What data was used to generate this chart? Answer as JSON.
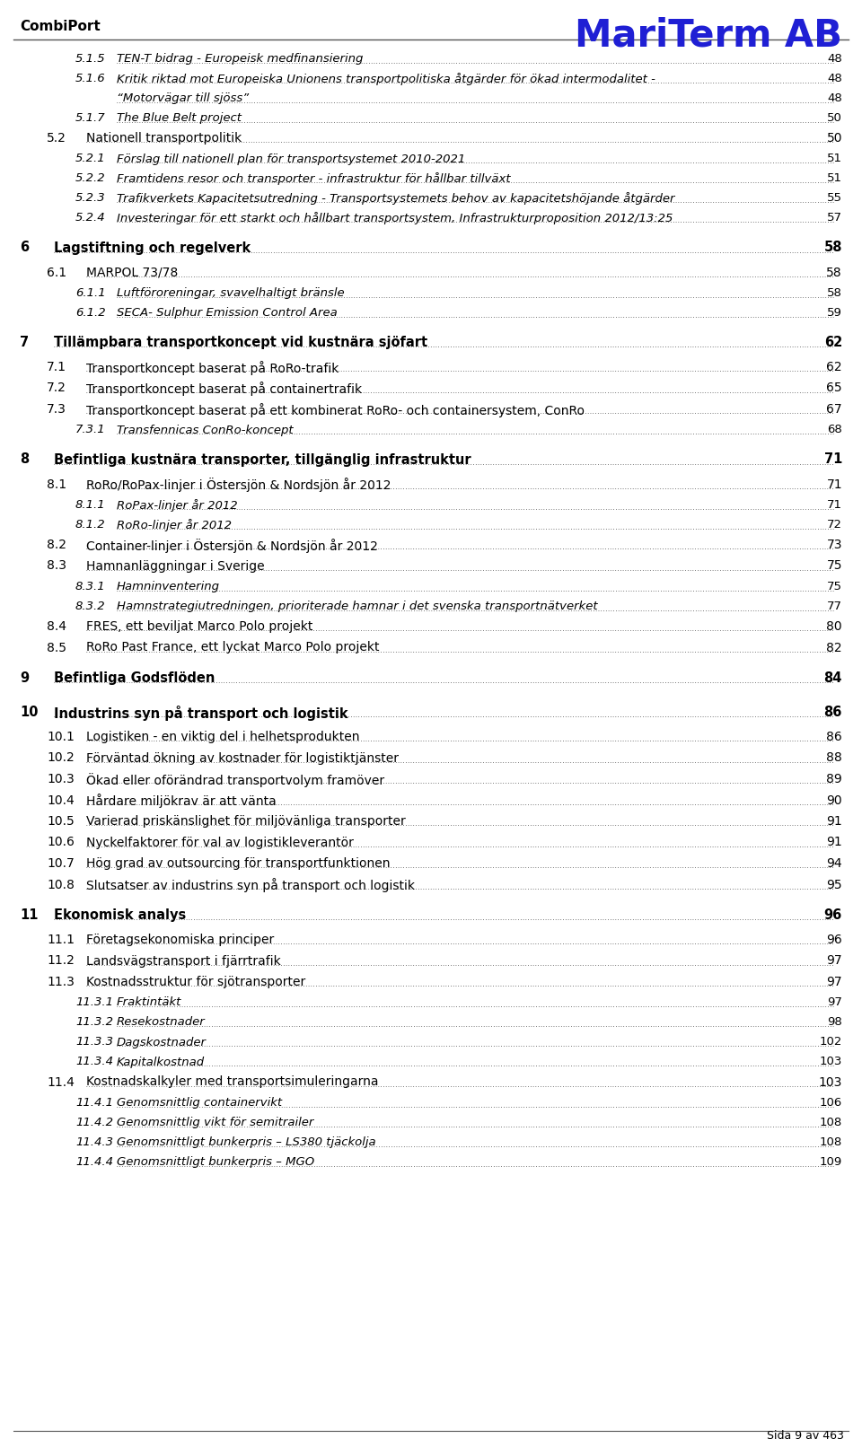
{
  "header_left": "CombiPort",
  "header_right": "MariTerm AB",
  "footer": "Sida 9 av 463",
  "background_color": "#ffffff",
  "text_color": "#000000",
  "header_right_color": "#1f1fd4",
  "entries": [
    {
      "level": 3,
      "num": "5.1.5",
      "text": "TEN-T bidrag - Europeisk medfinansiering",
      "page": "48",
      "style": "italic",
      "multiline": false
    },
    {
      "level": 3,
      "num": "5.1.6",
      "text": "Kritik riktad mot Europeiska Unionens transportpolitiska åtgärder för ökad intermodalitet -",
      "text2": "“Motorvägar till sjöss”",
      "page": "48",
      "style": "italic",
      "multiline": true
    },
    {
      "level": 3,
      "num": "5.1.7",
      "text": "The Blue Belt project",
      "page": "50",
      "style": "italic",
      "multiline": false
    },
    {
      "level": 2,
      "num": "5.2",
      "text": "Nationell transportpolitik",
      "page": "50",
      "style": "normal",
      "multiline": false
    },
    {
      "level": 3,
      "num": "5.2.1",
      "text": "Förslag till nationell plan för transportsystemet 2010-2021",
      "page": "51",
      "style": "italic",
      "multiline": false
    },
    {
      "level": 3,
      "num": "5.2.2",
      "text": "Framtidens resor och transporter - infrastruktur för hållbar tillväxt",
      "page": "51",
      "style": "italic",
      "multiline": false
    },
    {
      "level": 3,
      "num": "5.2.3",
      "text": "Trafikverkets Kapacitetsutredning - Transportsystemets behov av kapacitetshöjande åtgärder",
      "page": "55",
      "style": "italic",
      "multiline": false
    },
    {
      "level": 3,
      "num": "5.2.4",
      "text": "Investeringar för ett starkt och hållbart transportsystem, Infrastrukturproposition 2012/13:25",
      "page": "57",
      "style": "italic",
      "multiline": false
    },
    {
      "level": 1,
      "num": "6",
      "text": "Lagstiftning och regelverk",
      "page": "58",
      "style": "bold",
      "multiline": false
    },
    {
      "level": 2,
      "num": "6.1",
      "text": "MARPOL 73/78",
      "page": "58",
      "style": "normal",
      "multiline": false
    },
    {
      "level": 3,
      "num": "6.1.1",
      "text": "Luftföroreningar, svavelhaltigt bränsle",
      "page": "58",
      "style": "italic",
      "multiline": false
    },
    {
      "level": 3,
      "num": "6.1.2",
      "text": "SECA- Sulphur Emission Control Area",
      "page": "59",
      "style": "italic",
      "multiline": false
    },
    {
      "level": 1,
      "num": "7",
      "text": "Tillämpbara transportkoncept vid kustnära sjöfart",
      "page": "62",
      "style": "bold",
      "multiline": false
    },
    {
      "level": 2,
      "num": "7.1",
      "text": "Transportkoncept baserat på RoRo-trafik",
      "page": "62",
      "style": "normal",
      "multiline": false
    },
    {
      "level": 2,
      "num": "7.2",
      "text": "Transportkoncept baserat på containertrafik",
      "page": "65",
      "style": "normal",
      "multiline": false
    },
    {
      "level": 2,
      "num": "7.3",
      "text": "Transportkoncept baserat på ett kombinerat RoRo- och containersystem, ConRo",
      "page": "67",
      "style": "normal",
      "multiline": false
    },
    {
      "level": 3,
      "num": "7.3.1",
      "text": "Transfennicas ConRo-koncept",
      "page": "68",
      "style": "italic",
      "multiline": false
    },
    {
      "level": 1,
      "num": "8",
      "text": "Befintliga kustnära transporter, tillgänglig infrastruktur",
      "page": "71",
      "style": "bold",
      "multiline": false
    },
    {
      "level": 2,
      "num": "8.1",
      "text": "RoRo/RoPax-linjer i Östersjön & Nordsjön år 2012",
      "page": "71",
      "style": "normal",
      "multiline": false
    },
    {
      "level": 3,
      "num": "8.1.1",
      "text": "RoPax-linjer år 2012",
      "page": "71",
      "style": "italic",
      "multiline": false
    },
    {
      "level": 3,
      "num": "8.1.2",
      "text": "RoRo-linjer år 2012",
      "page": "72",
      "style": "italic",
      "multiline": false
    },
    {
      "level": 2,
      "num": "8.2",
      "text": "Container-linjer i Östersjön & Nordsjön år 2012",
      "page": "73",
      "style": "normal",
      "multiline": false
    },
    {
      "level": 2,
      "num": "8.3",
      "text": "Hamnanläggningar i Sverige",
      "page": "75",
      "style": "normal",
      "multiline": false
    },
    {
      "level": 3,
      "num": "8.3.1",
      "text": "Hamninventering",
      "page": "75",
      "style": "italic",
      "multiline": false
    },
    {
      "level": 3,
      "num": "8.3.2",
      "text": "Hamnstrategiutredningen, prioriterade hamnar i det svenska transportnätverket",
      "page": "77",
      "style": "italic",
      "multiline": false
    },
    {
      "level": 2,
      "num": "8.4",
      "text": "FRES, ett beviljat Marco Polo projekt",
      "page": "80",
      "style": "normal",
      "multiline": false
    },
    {
      "level": 2,
      "num": "8.5",
      "text": "RoRo Past France, ett lyckat Marco Polo projekt",
      "page": "82",
      "style": "normal",
      "multiline": false
    },
    {
      "level": 1,
      "num": "9",
      "text": "Befintliga Godsflöden",
      "page": "84",
      "style": "bold",
      "multiline": false
    },
    {
      "level": 1,
      "num": "10",
      "text": "Industrins syn på transport och logistik",
      "page": "86",
      "style": "bold",
      "multiline": false
    },
    {
      "level": 2,
      "num": "10.1",
      "text": "Logistiken - en viktig del i helhetsprodukten",
      "page": "86",
      "style": "normal",
      "multiline": false
    },
    {
      "level": 2,
      "num": "10.2",
      "text": "Förväntad ökning av kostnader för logistiktjänster",
      "page": "88",
      "style": "normal",
      "multiline": false
    },
    {
      "level": 2,
      "num": "10.3",
      "text": "Ökad eller oförändrad transportvolym framöver",
      "page": "89",
      "style": "normal",
      "multiline": false
    },
    {
      "level": 2,
      "num": "10.4",
      "text": "Hårdare miljökrav är att vänta",
      "page": "90",
      "style": "normal",
      "multiline": false
    },
    {
      "level": 2,
      "num": "10.5",
      "text": "Varierad priskänslighet för miljövänliga transporter",
      "page": "91",
      "style": "normal",
      "multiline": false
    },
    {
      "level": 2,
      "num": "10.6",
      "text": "Nyckelfaktorer för val av logistikleverantör",
      "page": "91",
      "style": "normal",
      "multiline": false
    },
    {
      "level": 2,
      "num": "10.7",
      "text": "Hög grad av outsourcing för transportfunktionen",
      "page": "94",
      "style": "normal",
      "multiline": false
    },
    {
      "level": 2,
      "num": "10.8",
      "text": "Slutsatser av industrins syn på transport och logistik",
      "page": "95",
      "style": "normal",
      "multiline": false
    },
    {
      "level": 1,
      "num": "11",
      "text": "Ekonomisk analys",
      "page": "96",
      "style": "bold",
      "multiline": false
    },
    {
      "level": 2,
      "num": "11.1",
      "text": "Företagsekonomiska principer",
      "page": "96",
      "style": "normal",
      "multiline": false
    },
    {
      "level": 2,
      "num": "11.2",
      "text": "Landsvägstransport i fjärrtrafik",
      "page": "97",
      "style": "normal",
      "multiline": false
    },
    {
      "level": 2,
      "num": "11.3",
      "text": "Kostnadsstruktur för sjötransporter",
      "page": "97",
      "style": "normal",
      "multiline": false
    },
    {
      "level": 3,
      "num": "11.3.1",
      "text": "Fraktintäkt",
      "page": "97",
      "style": "italic",
      "multiline": false
    },
    {
      "level": 3,
      "num": "11.3.2",
      "text": "Resekostnader",
      "page": "98",
      "style": "italic",
      "multiline": false
    },
    {
      "level": 3,
      "num": "11.3.3",
      "text": "Dagskostnader",
      "page": "102",
      "style": "italic",
      "multiline": false
    },
    {
      "level": 3,
      "num": "11.3.4",
      "text": "Kapitalkostnad",
      "page": "103",
      "style": "italic",
      "multiline": false
    },
    {
      "level": 2,
      "num": "11.4",
      "text": "Kostnadskalkyler med transportsimuleringarna",
      "page": "103",
      "style": "normal",
      "multiline": false
    },
    {
      "level": 3,
      "num": "11.4.1",
      "text": "Genomsnittlig containervikt",
      "page": "106",
      "style": "italic",
      "multiline": false
    },
    {
      "level": 3,
      "num": "11.4.2",
      "text": "Genomsnittlig vikt för semitrailer",
      "page": "108",
      "style": "italic",
      "multiline": false
    },
    {
      "level": 3,
      "num": "11.4.3",
      "text": "Genomsnittligt bunkerpris – LS380 tjäckolja",
      "page": "108",
      "style": "italic",
      "multiline": false
    },
    {
      "level": 3,
      "num": "11.4.4",
      "text": "Genomsnittligt bunkerpris – MGO",
      "page": "109",
      "style": "italic",
      "multiline": false
    }
  ]
}
